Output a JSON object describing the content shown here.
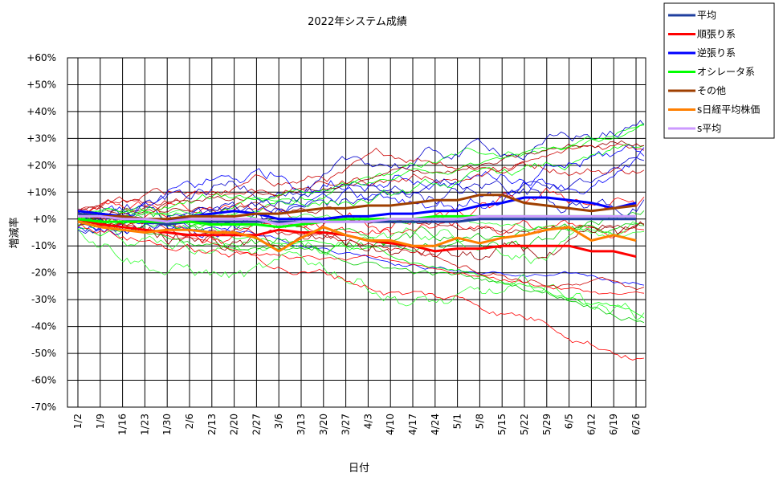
{
  "chart_data": {
    "type": "line",
    "title": "2022年システム成績",
    "xlabel": "日付",
    "ylabel": "増減率",
    "x": [
      "1/2",
      "1/9",
      "1/16",
      "1/23",
      "1/30",
      "2/6",
      "2/13",
      "2/20",
      "2/27",
      "3/6",
      "3/13",
      "3/20",
      "3/27",
      "4/3",
      "4/10",
      "4/17",
      "4/24",
      "5/1",
      "5/8",
      "5/15",
      "5/22",
      "5/29",
      "6/5",
      "6/12",
      "6/19",
      "6/26"
    ],
    "ylim": [
      -70,
      60
    ],
    "yticks": [
      "-70%",
      "-60%",
      "-50%",
      "-40%",
      "-30%",
      "-20%",
      "-10%",
      "+0%",
      "+10%",
      "+20%",
      "+30%",
      "+40%",
      "+50%",
      "+60%"
    ],
    "grid": true,
    "legend_position": "top-right",
    "series": [
      {
        "name": "平均",
        "color": "#1F3F9F",
        "values": [
          2,
          1,
          0,
          -1,
          -2,
          -1,
          -1,
          -1,
          -1,
          -1,
          -1,
          -1,
          -1,
          -1,
          -1,
          -1,
          -1,
          -1,
          0,
          0,
          0,
          0,
          0,
          0,
          0,
          0
        ]
      },
      {
        "name": "順張り系",
        "color": "#FF0000",
        "values": [
          0,
          -2,
          -3,
          -4,
          -5,
          -6,
          -6,
          -6,
          -6,
          -4,
          -5,
          -5,
          -6,
          -8,
          -9,
          -10,
          -12,
          -11,
          -11,
          -10,
          -10,
          -10,
          -10,
          -12,
          -12,
          -14
        ]
      },
      {
        "name": "逆張り系",
        "color": "#0000FF",
        "values": [
          3,
          2,
          1,
          0,
          -1,
          1,
          2,
          3,
          2,
          0,
          0,
          0,
          1,
          1,
          2,
          2,
          3,
          3,
          5,
          6,
          8,
          8,
          7,
          6,
          4,
          6
        ]
      },
      {
        "name": "オシレータ系",
        "color": "#00FF00",
        "values": [
          0,
          -1,
          -1,
          -1,
          -1,
          -1,
          -2,
          -2,
          -2,
          -3,
          -2,
          -1,
          0,
          0,
          0,
          0,
          1,
          1,
          1,
          1,
          1,
          1,
          1,
          1,
          1,
          1
        ]
      },
      {
        "name": "その他",
        "color": "#9F3F00",
        "values": [
          1,
          1,
          1,
          0,
          0,
          1,
          1,
          1,
          2,
          2,
          3,
          4,
          4,
          5,
          5,
          6,
          7,
          7,
          9,
          9,
          6,
          5,
          4,
          3,
          4,
          5
        ]
      },
      {
        "name": "s日経平均株価",
        "color": "#FF7F00",
        "values": [
          -1,
          -3,
          -4,
          -5,
          -4,
          -4,
          -5,
          -5,
          -7,
          -12,
          -7,
          -3,
          -6,
          -8,
          -8,
          -10,
          -10,
          -7,
          -9,
          -7,
          -6,
          -4,
          -3,
          -8,
          -6,
          -8
        ]
      },
      {
        "name": "s平均",
        "color": "#CC99FF",
        "values": [
          1,
          1,
          0,
          0,
          -1,
          0,
          0,
          0,
          0,
          -2,
          -1,
          -1,
          -1,
          -1,
          0,
          0,
          0,
          0,
          1,
          1,
          1,
          1,
          1,
          1,
          1,
          1
        ]
      }
    ]
  }
}
